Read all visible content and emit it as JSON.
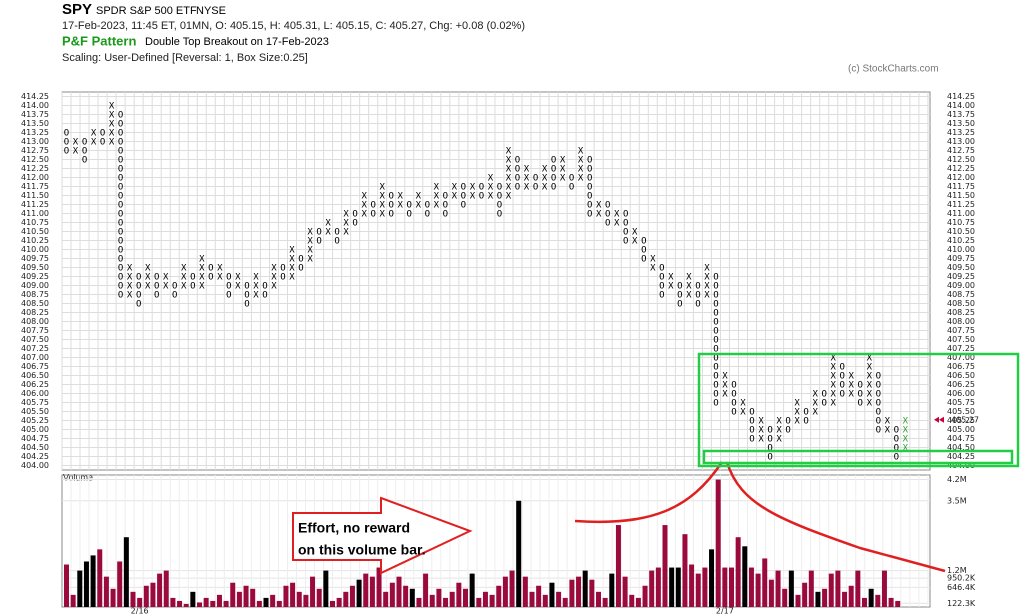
{
  "header": {
    "symbol": "SPY",
    "name": "SPDR S&P 500 ETF",
    "exchange": "NYSE",
    "quote": "17-Feb-2023, 11:45 ET, 01MN, O: 405.15, H: 405.31, L: 405.15, C: 405.27, Chg: +0.08 (0.02%)",
    "pattern_label": "P&F Pattern",
    "pattern": "Double Top Breakout on 17-Feb-2023",
    "scaling": "Scaling: User-Defined [Reversal: 1, Box Size:0.25]",
    "copyright": "(c) StockCharts.com"
  },
  "annotation": {
    "lines": [
      "Effort, no reward",
      "on this volume bar."
    ]
  },
  "chart_data": [
    {
      "type": "pnf",
      "ylim": [
        403.875,
        414.375
      ],
      "grid": true,
      "box_color": "#000000",
      "last_color": "#2e9e2e",
      "last_price_color": "#c8003c",
      "last_price": 405.27,
      "yticks": [
        {
          "value": 404,
          "label": "404.00"
        },
        404.25,
        {
          "value": 404.5,
          "label": "404.50"
        },
        404.75,
        {
          "value": 405,
          "label": "405.00"
        },
        405.25,
        {
          "value": 405.5,
          "label": "405.50"
        },
        405.75,
        {
          "value": 406,
          "label": "406.00"
        },
        406.25,
        {
          "value": 406.5,
          "label": "406.50"
        },
        406.75,
        {
          "value": 407,
          "label": "407.00"
        },
        407.25,
        {
          "value": 407.5,
          "label": "407.50"
        },
        407.75,
        {
          "value": 408,
          "label": "408.00"
        },
        408.25,
        {
          "value": 408.5,
          "label": "408.50"
        },
        408.75,
        {
          "value": 409,
          "label": "409.00"
        },
        409.25,
        {
          "value": 409.5,
          "label": "409.50"
        },
        409.75,
        {
          "value": 410,
          "label": "410.00"
        },
        410.25,
        {
          "value": 410.5,
          "label": "410.50"
        },
        410.75,
        {
          "value": 411,
          "label": "411.00"
        },
        411.25,
        {
          "value": 411.5,
          "label": "411.50"
        },
        411.75,
        {
          "value": 412,
          "label": "412.00"
        },
        412.25,
        {
          "value": 412.5,
          "label": "412.50"
        },
        412.75,
        {
          "value": 413,
          "label": "413.00"
        },
        413.25,
        {
          "value": 413.5,
          "label": "413.50"
        },
        413.75,
        {
          "value": 414,
          "label": "414.00"
        },
        414.25
      ],
      "columns": [
        {
          "type": "O",
          "low": 412.75,
          "high": 413.25
        },
        {
          "type": "X",
          "low": 412.75,
          "high": 413
        },
        {
          "type": "O",
          "low": 412.5,
          "high": 413
        },
        {
          "type": "X",
          "low": 413,
          "high": 413.25
        },
        {
          "type": "O",
          "low": 413,
          "high": 413.25
        },
        {
          "type": "X",
          "low": 413,
          "high": 414
        },
        {
          "type": "O",
          "low": 408.75,
          "high": 413.75
        },
        {
          "type": "X",
          "low": 408.75,
          "high": 409.5
        },
        {
          "type": "O",
          "low": 408.5,
          "high": 409.25
        },
        {
          "type": "X",
          "low": 409,
          "high": 409.5
        },
        {
          "type": "O",
          "low": 408.75,
          "high": 409.25
        },
        {
          "type": "X",
          "low": 409,
          "high": 409.25
        },
        {
          "type": "O",
          "low": 408.75,
          "high": 409
        },
        {
          "type": "X",
          "low": 409,
          "high": 409.5
        },
        {
          "type": "O",
          "low": 409,
          "high": 409.25
        },
        {
          "type": "X",
          "low": 409,
          "high": 409.75
        },
        {
          "type": "O",
          "low": 409.25,
          "high": 409.5
        },
        {
          "type": "X",
          "low": 409.25,
          "high": 409.5
        },
        {
          "type": "O",
          "low": 408.75,
          "high": 409.25
        },
        {
          "type": "X",
          "low": 409,
          "high": 409.25
        },
        {
          "type": "O",
          "low": 408.5,
          "high": 409
        },
        {
          "type": "X",
          "low": 408.75,
          "high": 409.25
        },
        {
          "type": "O",
          "low": 408.75,
          "high": 409
        },
        {
          "type": "X",
          "low": 409,
          "high": 409.5
        },
        {
          "type": "O",
          "low": 409.25,
          "high": 409.5
        },
        {
          "type": "X",
          "low": 409.25,
          "high": 410
        },
        {
          "type": "O",
          "low": 409.5,
          "high": 409.75
        },
        {
          "type": "X",
          "low": 409.75,
          "high": 410.5
        },
        {
          "type": "O",
          "low": 410.25,
          "high": 410.5
        },
        {
          "type": "X",
          "low": 410.5,
          "high": 410.75
        },
        {
          "type": "O",
          "low": 410.25,
          "high": 410.5
        },
        {
          "type": "X",
          "low": 410.5,
          "high": 411
        },
        {
          "type": "O",
          "low": 410.75,
          "high": 411
        },
        {
          "type": "X",
          "low": 411,
          "high": 411.5
        },
        {
          "type": "O",
          "low": 411,
          "high": 411.25
        },
        {
          "type": "X",
          "low": 411,
          "high": 411.75
        },
        {
          "type": "O",
          "low": 411,
          "high": 411.5
        },
        {
          "type": "X",
          "low": 411.25,
          "high": 411.5
        },
        {
          "type": "O",
          "low": 411,
          "high": 411.25
        },
        {
          "type": "X",
          "low": 411.25,
          "high": 411.5
        },
        {
          "type": "O",
          "low": 411,
          "high": 411.25
        },
        {
          "type": "X",
          "low": 411.25,
          "high": 411.75
        },
        {
          "type": "O",
          "low": 411,
          "high": 411.5
        },
        {
          "type": "X",
          "low": 411.5,
          "high": 411.75
        },
        {
          "type": "O",
          "low": 411.25,
          "high": 411.75
        },
        {
          "type": "X",
          "low": 411.5,
          "high": 411.75
        },
        {
          "type": "O",
          "low": 411.5,
          "high": 411.75
        },
        {
          "type": "X",
          "low": 411.5,
          "high": 412
        },
        {
          "type": "O",
          "low": 411,
          "high": 411.75
        },
        {
          "type": "X",
          "low": 411.5,
          "high": 412.75
        },
        {
          "type": "O",
          "low": 411.75,
          "high": 412.5
        },
        {
          "type": "X",
          "low": 411.75,
          "high": 412.25
        },
        {
          "type": "O",
          "low": 411.75,
          "high": 412
        },
        {
          "type": "X",
          "low": 411.75,
          "high": 412.25
        },
        {
          "type": "O",
          "low": 411.75,
          "high": 412.5
        },
        {
          "type": "X",
          "low": 412,
          "high": 412.5
        },
        {
          "type": "O",
          "low": 411.75,
          "high": 412
        },
        {
          "type": "X",
          "low": 412,
          "high": 412.75
        },
        {
          "type": "O",
          "low": 411,
          "high": 412.5
        },
        {
          "type": "X",
          "low": 411,
          "high": 411.25
        },
        {
          "type": "O",
          "low": 410.75,
          "high": 411.25
        },
        {
          "type": "X",
          "low": 410.75,
          "high": 411
        },
        {
          "type": "O",
          "low": 410.25,
          "high": 411
        },
        {
          "type": "X",
          "low": 410.25,
          "high": 410.5
        },
        {
          "type": "O",
          "low": 409.75,
          "high": 410.25
        },
        {
          "type": "X",
          "low": 409.5,
          "high": 409.75
        },
        {
          "type": "O",
          "low": 408.75,
          "high": 409.5
        },
        {
          "type": "X",
          "low": 409,
          "high": 409.25
        },
        {
          "type": "O",
          "low": 408.5,
          "high": 409
        },
        {
          "type": "X",
          "low": 408.75,
          "high": 409.25
        },
        {
          "type": "O",
          "low": 408.5,
          "high": 409
        },
        {
          "type": "X",
          "low": 408.75,
          "high": 409.5
        },
        {
          "type": "O",
          "low": 405.75,
          "high": 409.25
        },
        {
          "type": "X",
          "low": 406,
          "high": 406.5
        },
        {
          "type": "O",
          "low": 405.5,
          "high": 406.25
        },
        {
          "type": "X",
          "low": 405.5,
          "high": 405.75
        },
        {
          "type": "O",
          "low": 404.75,
          "high": 405.5
        },
        {
          "type": "X",
          "low": 404.75,
          "high": 405.25
        },
        {
          "type": "O",
          "low": 404.25,
          "high": 405
        },
        {
          "type": "X",
          "low": 404.75,
          "high": 405.25
        },
        {
          "type": "O",
          "low": 405,
          "high": 405.25
        },
        {
          "type": "X",
          "low": 405.25,
          "high": 405.75
        },
        {
          "type": "O",
          "low": 405.25,
          "high": 405.5
        },
        {
          "type": "X",
          "low": 405.5,
          "high": 406
        },
        {
          "type": "O",
          "low": 405.75,
          "high": 406
        },
        {
          "type": "X",
          "low": 405.75,
          "high": 407
        },
        {
          "type": "O",
          "low": 406,
          "high": 406.75
        },
        {
          "type": "X",
          "low": 406,
          "high": 406.5
        },
        {
          "type": "O",
          "low": 405.75,
          "high": 406.25
        },
        {
          "type": "X",
          "low": 405.75,
          "high": 407
        },
        {
          "type": "O",
          "low": 405,
          "high": 406.5
        },
        {
          "type": "X",
          "low": 405,
          "high": 405.25
        },
        {
          "type": "O",
          "low": 404.25,
          "high": 405
        },
        {
          "type": "X",
          "low": 404.5,
          "high": 405.25
        }
      ]
    },
    {
      "type": "bar",
      "title": "Volume",
      "ylim": [
        0,
        4350000
      ],
      "yticks": [
        {
          "value": 4200000,
          "label": "4.2M"
        },
        {
          "value": 3500000,
          "label": "3.5M"
        },
        {
          "value": 1200000,
          "label": "1.2M"
        },
        {
          "value": 950200,
          "label": "950.2K"
        },
        {
          "value": 646400,
          "label": "646.4K"
        },
        {
          "value": 122300,
          "label": "122.3K"
        }
      ],
      "categories": [
        null,
        null,
        null,
        null,
        null,
        null,
        null,
        null,
        null,
        null,
        null,
        "2/16",
        null,
        null,
        null,
        null,
        null,
        null,
        null,
        null,
        null,
        null,
        null,
        null,
        null,
        null,
        null,
        null,
        null,
        null,
        null,
        null,
        null,
        null,
        null,
        null,
        null,
        null,
        null,
        null,
        null,
        null,
        null,
        null,
        null,
        null,
        null,
        null,
        null,
        null,
        null,
        null,
        null,
        null,
        null,
        null,
        null,
        null,
        null,
        null,
        null,
        null,
        null,
        null,
        null,
        null,
        null,
        null,
        null,
        null,
        null,
        null,
        null,
        null,
        null,
        null,
        null,
        null,
        null,
        null,
        null,
        null,
        null,
        null,
        null,
        null,
        null,
        null,
        null,
        null,
        null,
        null,
        null,
        null,
        null,
        null,
        null,
        null,
        null,
        "2/17",
        null,
        null,
        null,
        null,
        null,
        null,
        null,
        null,
        null,
        null,
        null,
        null,
        null,
        null,
        null,
        null,
        null,
        null,
        null,
        null,
        null,
        null,
        null,
        null,
        null,
        null
      ],
      "values": [
        1400000,
        400000,
        1200000,
        1500000,
        1700000,
        1900000,
        1000000,
        600000,
        1500000,
        2300000,
        500000,
        300000,
        700000,
        800000,
        1100000,
        1200000,
        300000,
        200000,
        100000,
        500000,
        150000,
        300000,
        200000,
        400000,
        200000,
        800000,
        500000,
        700000,
        600000,
        200000,
        300000,
        400000,
        200000,
        700000,
        800000,
        500000,
        400000,
        1000000,
        600000,
        1200000,
        200000,
        300000,
        500000,
        700000,
        900000,
        1100000,
        1000000,
        1300000,
        500000,
        800000,
        1000000,
        700000,
        600000,
        300000,
        1100000,
        400000,
        600000,
        300000,
        500000,
        800000,
        600000,
        1100000,
        300000,
        500000,
        400000,
        700000,
        1000000,
        1200000,
        3500000,
        1000000,
        500000,
        700000,
        400000,
        800000,
        500000,
        300000,
        900000,
        1000000,
        1200000,
        900000,
        500000,
        300000,
        1100000,
        2700000,
        1000000,
        400000,
        300000,
        700000,
        1200000,
        1300000,
        2700000,
        1300000,
        1300000,
        2400000,
        1400000,
        1100000,
        1300000,
        1900000,
        4200000,
        1300000,
        1300000,
        2300000,
        2000000,
        1300000,
        1100000,
        1600000,
        900000,
        1200000,
        600000,
        1200000,
        400000,
        800000,
        1200000,
        500000,
        600000,
        1100000,
        1200000,
        500000,
        700000,
        1200000,
        300000,
        600000,
        400000,
        1200000,
        300000,
        200000
      ],
      "colors": [
        "#9b0a3c",
        "#9b0a3c",
        "#000000",
        "#000000",
        "#000000",
        "#9b0a3c",
        "#9b0a3c",
        "#9b0a3c",
        "#9b0a3c",
        "#000000",
        "#9b0a3c",
        "#9b0a3c",
        "#9b0a3c",
        "#9b0a3c",
        "#9b0a3c",
        "#9b0a3c",
        "#9b0a3c",
        "#9b0a3c",
        "#9b0a3c",
        "#000000",
        "#9b0a3c",
        "#9b0a3c",
        "#9b0a3c",
        "#9b0a3c",
        "#9b0a3c",
        "#9b0a3c",
        "#9b0a3c",
        "#9b0a3c",
        "#9b0a3c",
        "#9b0a3c",
        "#000000",
        "#9b0a3c",
        "#9b0a3c",
        "#9b0a3c",
        "#9b0a3c",
        "#9b0a3c",
        "#9b0a3c",
        "#9b0a3c",
        "#9b0a3c",
        "#000000",
        "#9b0a3c",
        "#9b0a3c",
        "#9b0a3c",
        "#9b0a3c",
        "#000000",
        "#9b0a3c",
        "#9b0a3c",
        "#9b0a3c",
        "#9b0a3c",
        "#9b0a3c",
        "#9b0a3c",
        "#9b0a3c",
        "#000000",
        "#9b0a3c",
        "#9b0a3c",
        "#9b0a3c",
        "#9b0a3c",
        "#9b0a3c",
        "#9b0a3c",
        "#9b0a3c",
        "#9b0a3c",
        "#000000",
        "#9b0a3c",
        "#9b0a3c",
        "#9b0a3c",
        "#9b0a3c",
        "#9b0a3c",
        "#9b0a3c",
        "#000000",
        "#9b0a3c",
        "#9b0a3c",
        "#9b0a3c",
        "#9b0a3c",
        "#000000",
        "#9b0a3c",
        "#9b0a3c",
        "#9b0a3c",
        "#9b0a3c",
        "#000000",
        "#9b0a3c",
        "#9b0a3c",
        "#9b0a3c",
        "#000000",
        "#9b0a3c",
        "#9b0a3c",
        "#9b0a3c",
        "#9b0a3c",
        "#9b0a3c",
        "#9b0a3c",
        "#9b0a3c",
        "#9b0a3c",
        "#000000",
        "#000000",
        "#9b0a3c",
        "#9b0a3c",
        "#9b0a3c",
        "#9b0a3c",
        "#000000",
        "#9b0a3c",
        "#9b0a3c",
        "#9b0a3c",
        "#9b0a3c",
        "#000000",
        "#9b0a3c",
        "#9b0a3c",
        "#9b0a3c",
        "#9b0a3c",
        "#9b0a3c",
        "#9b0a3c",
        "#000000",
        "#9b0a3c",
        "#9b0a3c",
        "#9b0a3c",
        "#000000",
        "#9b0a3c",
        "#9b0a3c",
        "#9b0a3c",
        "#9b0a3c",
        "#9b0a3c",
        "#9b0a3c",
        "#9b0a3c",
        "#000000",
        "#9b0a3c",
        "#9b0a3c",
        "#9b0a3c",
        "#9b0a3c"
      ]
    }
  ]
}
